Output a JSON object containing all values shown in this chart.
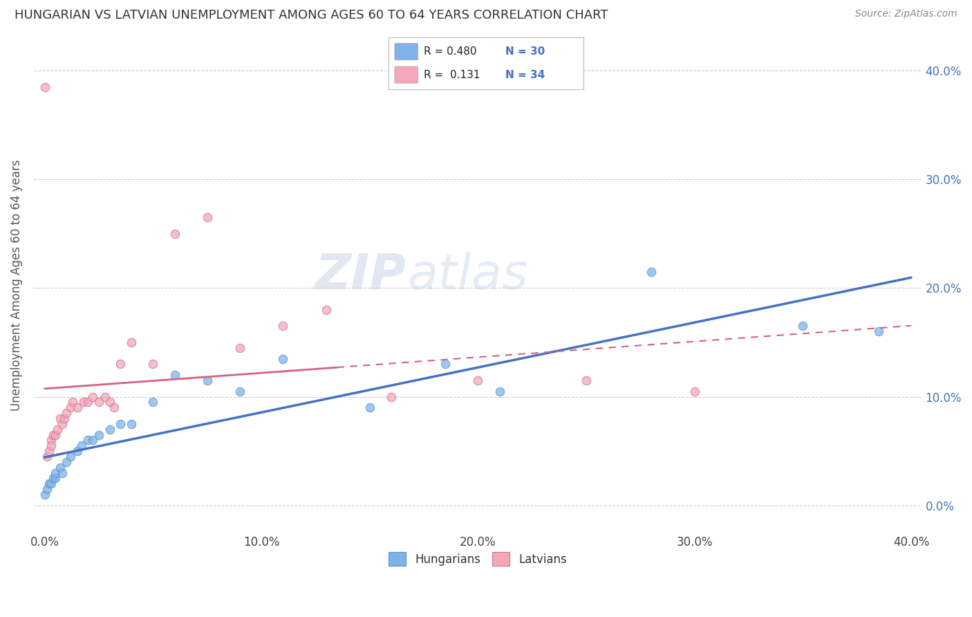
{
  "title": "HUNGARIAN VS LATVIAN UNEMPLOYMENT AMONG AGES 60 TO 64 YEARS CORRELATION CHART",
  "source": "Source: ZipAtlas.com",
  "ylabel_label": "Unemployment Among Ages 60 to 64 years",
  "xlim": [
    0.0,
    0.4
  ],
  "ylim": [
    -0.025,
    0.43
  ],
  "background_color": "#ffffff",
  "watermark_text": "ZIPatlas",
  "hungarian_color": "#7fb3e8",
  "latvian_color": "#f4a7b9",
  "hungarian_line_color": "#4472c4",
  "latvian_line_color": "#d96080",
  "scatter_size": 80,
  "hungarian_x": [
    0.0,
    0.001,
    0.002,
    0.003,
    0.004,
    0.005,
    0.005,
    0.007,
    0.008,
    0.01,
    0.012,
    0.015,
    0.017,
    0.02,
    0.022,
    0.025,
    0.03,
    0.035,
    0.04,
    0.05,
    0.06,
    0.075,
    0.09,
    0.11,
    0.15,
    0.185,
    0.21,
    0.28,
    0.35,
    0.385
  ],
  "hungarian_y": [
    0.01,
    0.015,
    0.02,
    0.02,
    0.025,
    0.025,
    0.03,
    0.035,
    0.03,
    0.04,
    0.045,
    0.05,
    0.055,
    0.06,
    0.06,
    0.065,
    0.07,
    0.075,
    0.075,
    0.095,
    0.12,
    0.115,
    0.105,
    0.135,
    0.09,
    0.13,
    0.105,
    0.215,
    0.165,
    0.16
  ],
  "latvian_x": [
    0.0,
    0.001,
    0.002,
    0.003,
    0.003,
    0.004,
    0.005,
    0.006,
    0.007,
    0.008,
    0.009,
    0.01,
    0.012,
    0.013,
    0.015,
    0.018,
    0.02,
    0.022,
    0.025,
    0.028,
    0.03,
    0.032,
    0.035,
    0.04,
    0.05,
    0.06,
    0.075,
    0.09,
    0.11,
    0.13,
    0.16,
    0.2,
    0.25,
    0.3
  ],
  "latvian_y": [
    0.385,
    0.045,
    0.05,
    0.06,
    0.055,
    0.065,
    0.065,
    0.07,
    0.08,
    0.075,
    0.08,
    0.085,
    0.09,
    0.095,
    0.09,
    0.095,
    0.095,
    0.1,
    0.095,
    0.1,
    0.095,
    0.09,
    0.13,
    0.15,
    0.13,
    0.25,
    0.265,
    0.145,
    0.165,
    0.18,
    0.1,
    0.115,
    0.115,
    0.105
  ],
  "latvian_line_xrange": [
    0.0,
    0.135
  ],
  "latvian_dashed_xrange": [
    0.0,
    0.4
  ]
}
